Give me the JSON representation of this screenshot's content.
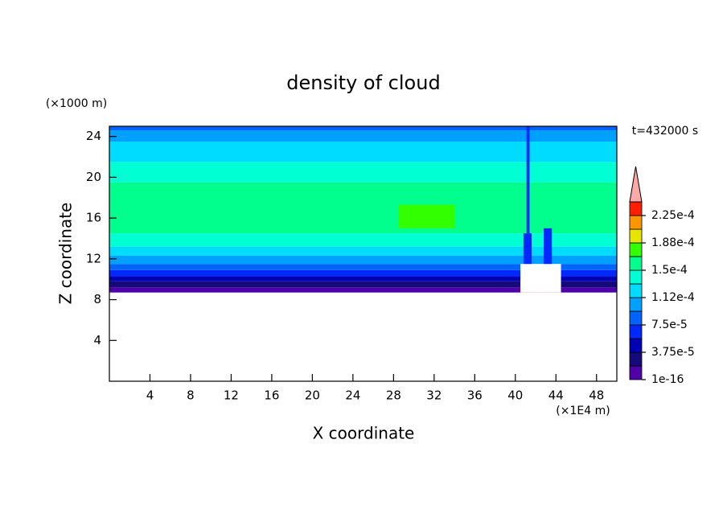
{
  "chart_data": {
    "type": "contour",
    "title": "density of cloud",
    "x_label": "X coordinate",
    "y_label": "Z coordinate",
    "x_unit": "(×1E4 m)",
    "y_unit": "(×1000 m)",
    "annotation": "t=432000 s",
    "xlim": [
      0,
      50
    ],
    "ylim": [
      0,
      25
    ],
    "xticks": [
      4,
      8,
      12,
      16,
      20,
      24,
      28,
      32,
      36,
      40,
      44,
      48
    ],
    "yticks": [
      4,
      8,
      12,
      16,
      20,
      24
    ],
    "colorbar": {
      "lim": [
        1e-16,
        0.00024375
      ],
      "colors": [
        "#5000a8",
        "#160a7a",
        "#0000b4",
        "#0028ff",
        "#0064ff",
        "#00a0ff",
        "#00dcff",
        "#00ffd2",
        "#00ff8c",
        "#32ff00",
        "#e6e600",
        "#ff9600",
        "#ff1e00"
      ],
      "extend": "max",
      "extend_color": "#ffa8a8",
      "ticks": [
        {
          "value": 1e-16,
          "label": "1e-16"
        },
        {
          "value": 3.75e-05,
          "label": "3.75e-5"
        },
        {
          "value": 7.5e-05,
          "label": "7.5e-5"
        },
        {
          "value": 0.0001125,
          "label": "1.12e-4"
        },
        {
          "value": 0.00015,
          "label": "1.5e-4"
        },
        {
          "value": 0.0001875,
          "label": "1.88e-4"
        },
        {
          "value": 0.000225,
          "label": "2.25e-4"
        }
      ]
    },
    "field": [
      {
        "x": [
          0,
          50
        ],
        "z": [
          8.7,
          9.2
        ],
        "level": 0
      },
      {
        "x": [
          0,
          50
        ],
        "z": [
          9.2,
          9.8
        ],
        "level": 1
      },
      {
        "x": [
          0,
          50
        ],
        "z": [
          9.8,
          10.3
        ],
        "level": 2
      },
      {
        "x": [
          0,
          50
        ],
        "z": [
          10.3,
          10.9
        ],
        "level": 3
      },
      {
        "x": [
          0,
          50
        ],
        "z": [
          10.9,
          11.5
        ],
        "level": 4
      },
      {
        "x": [
          0,
          50
        ],
        "z": [
          11.5,
          12.3
        ],
        "level": 5
      },
      {
        "x": [
          0,
          50
        ],
        "z": [
          12.3,
          13.2
        ],
        "level": 6
      },
      {
        "x": [
          0,
          50
        ],
        "z": [
          13.2,
          14.5
        ],
        "level": 7
      },
      {
        "x": [
          0,
          50
        ],
        "z": [
          14.5,
          19.5
        ],
        "level": 8
      },
      {
        "x": [
          0,
          50
        ],
        "z": [
          19.5,
          21.5
        ],
        "level": 7
      },
      {
        "x": [
          0,
          50
        ],
        "z": [
          21.5,
          23.5
        ],
        "level": 6
      },
      {
        "x": [
          0,
          50
        ],
        "z": [
          23.5,
          24.6
        ],
        "level": 5
      },
      {
        "x": [
          0,
          50
        ],
        "z": [
          24.6,
          25
        ],
        "level": 4
      },
      {
        "x": [
          28.5,
          34
        ],
        "z": [
          15,
          17.3
        ],
        "level": 9
      },
      {
        "x": [
          40.5,
          44.5
        ],
        "z": [
          8.7,
          11.5
        ],
        "level": null
      },
      {
        "x": [
          40.8,
          41.6
        ],
        "z": [
          11.5,
          14.5
        ],
        "level": 3
      },
      {
        "x": [
          42.8,
          43.6
        ],
        "z": [
          11.5,
          15
        ],
        "level": 3
      },
      {
        "x": [
          41.1,
          41.4
        ],
        "z": [
          14.5,
          25
        ],
        "level": 3
      }
    ]
  }
}
